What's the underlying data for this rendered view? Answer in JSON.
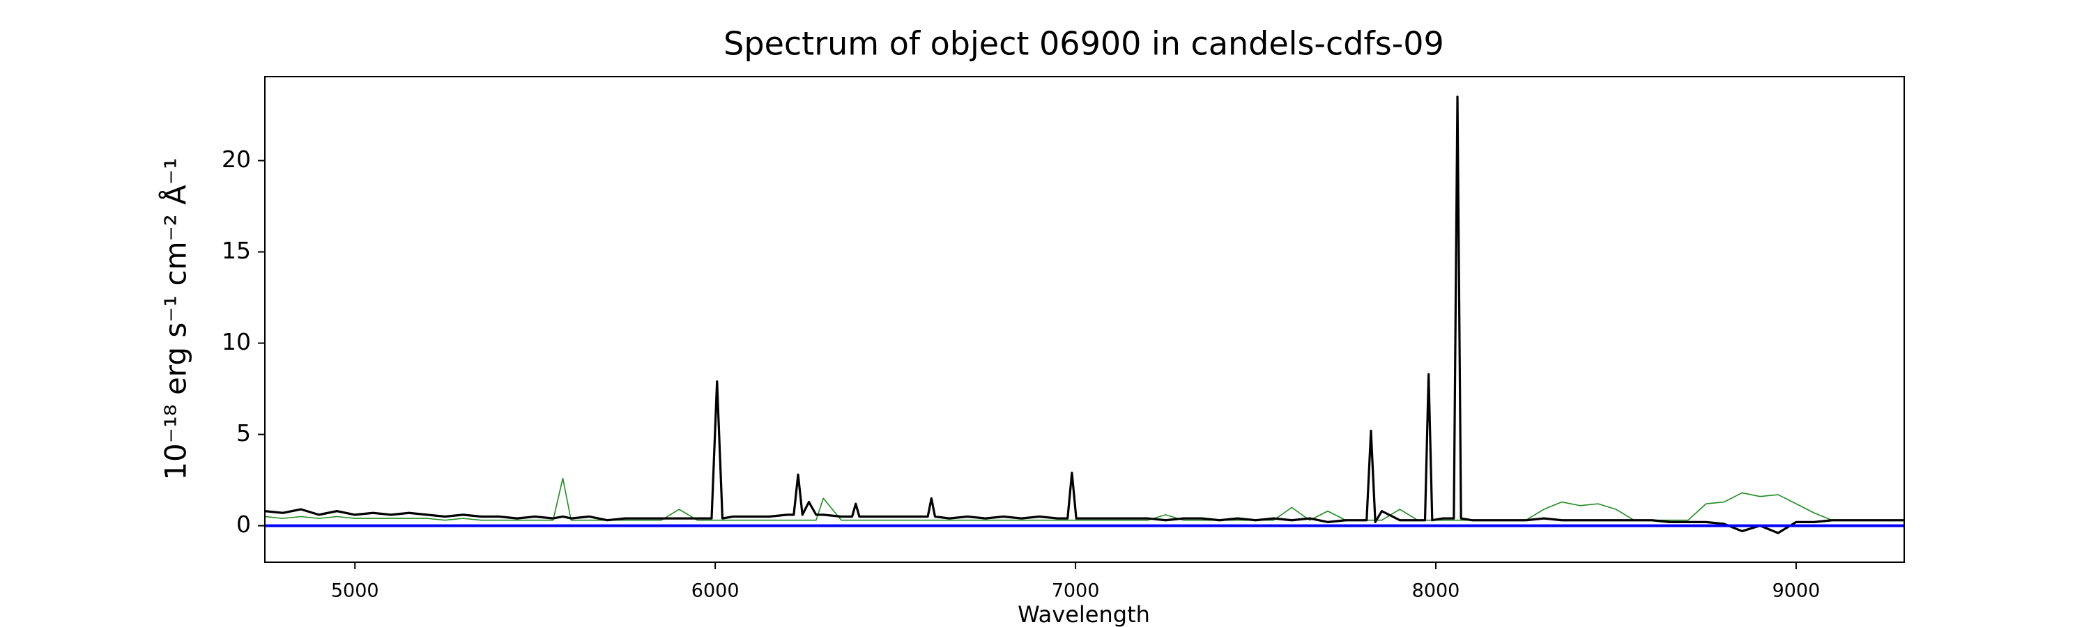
{
  "chart_data": {
    "type": "line",
    "title": "Spectrum of object 06900 in candels-cdfs-09",
    "x_label": "Wavelength",
    "y_label": "10⁻¹⁸ erg s⁻¹ cm⁻² Å⁻¹",
    "x": [
      4750,
      4800,
      4850,
      4900,
      4950,
      5000,
      5050,
      5100,
      5150,
      5200,
      5250,
      5300,
      5350,
      5400,
      5450,
      5500,
      5550,
      5577,
      5600,
      5650,
      5700,
      5750,
      5800,
      5850,
      5900,
      5950,
      5990,
      6005,
      6020,
      6050,
      6100,
      6150,
      6200,
      6218,
      6230,
      6242,
      6260,
      6280,
      6300,
      6350,
      6380,
      6390,
      6400,
      6450,
      6500,
      6550,
      6590,
      6600,
      6610,
      6650,
      6700,
      6750,
      6800,
      6850,
      6900,
      6950,
      6978,
      6990,
      7002,
      7050,
      7100,
      7150,
      7200,
      7250,
      7300,
      7350,
      7400,
      7450,
      7500,
      7550,
      7600,
      7650,
      7700,
      7750,
      7800,
      7808,
      7820,
      7832,
      7850,
      7900,
      7950,
      7970,
      7980,
      7990,
      8020,
      8050,
      8060,
      8070,
      8100,
      8150,
      8200,
      8250,
      8300,
      8350,
      8400,
      8450,
      8500,
      8550,
      8600,
      8650,
      8700,
      8750,
      8800,
      8850,
      8900,
      8950,
      9000,
      9050,
      9100,
      9150,
      9200,
      9250,
      9300
    ],
    "series": [
      {
        "color": "#228b22",
        "values": [
          0.5,
          0.4,
          0.5,
          0.4,
          0.5,
          0.4,
          0.4,
          0.4,
          0.4,
          0.4,
          0.3,
          0.4,
          0.3,
          0.3,
          0.3,
          0.3,
          0.3,
          2.6,
          0.3,
          0.3,
          0.3,
          0.3,
          0.3,
          0.3,
          0.9,
          0.3,
          0.3,
          0.3,
          0.3,
          0.3,
          0.3,
          0.3,
          0.3,
          0.3,
          0.3,
          0.3,
          0.3,
          0.3,
          1.5,
          0.3,
          0.3,
          0.3,
          0.3,
          0.3,
          0.3,
          0.3,
          0.3,
          0.3,
          0.3,
          0.3,
          0.3,
          0.3,
          0.3,
          0.3,
          0.3,
          0.3,
          0.3,
          0.3,
          0.3,
          0.3,
          0.3,
          0.3,
          0.3,
          0.6,
          0.3,
          0.3,
          0.3,
          0.3,
          0.3,
          0.3,
          1.0,
          0.3,
          0.8,
          0.3,
          0.3,
          0.3,
          0.3,
          0.3,
          0.3,
          0.9,
          0.3,
          0.3,
          0.3,
          0.3,
          0.3,
          0.3,
          0.3,
          0.3,
          0.3,
          0.3,
          0.3,
          0.3,
          0.9,
          1.3,
          1.1,
          1.2,
          0.9,
          0.3,
          0.3,
          0.3,
          0.3,
          1.2,
          1.3,
          1.8,
          1.6,
          1.7,
          1.2,
          0.7,
          0.3,
          0.3,
          0.3,
          0.3,
          0.3
        ]
      },
      {
        "color": "#000000",
        "values": [
          0.8,
          0.7,
          0.9,
          0.6,
          0.8,
          0.6,
          0.7,
          0.6,
          0.7,
          0.6,
          0.5,
          0.6,
          0.5,
          0.5,
          0.4,
          0.5,
          0.4,
          0.5,
          0.4,
          0.5,
          0.3,
          0.4,
          0.4,
          0.4,
          0.4,
          0.4,
          0.4,
          7.9,
          0.4,
          0.5,
          0.5,
          0.5,
          0.6,
          0.6,
          2.8,
          0.6,
          1.3,
          0.6,
          0.6,
          0.5,
          0.5,
          1.2,
          0.5,
          0.5,
          0.5,
          0.5,
          0.5,
          1.5,
          0.5,
          0.4,
          0.5,
          0.4,
          0.5,
          0.4,
          0.5,
          0.4,
          0.4,
          2.9,
          0.4,
          0.4,
          0.4,
          0.4,
          0.4,
          0.3,
          0.4,
          0.4,
          0.3,
          0.4,
          0.3,
          0.4,
          0.3,
          0.4,
          0.2,
          0.3,
          0.3,
          0.3,
          5.2,
          0.2,
          0.8,
          0.3,
          0.3,
          0.3,
          8.3,
          0.3,
          0.4,
          0.4,
          23.5,
          0.4,
          0.3,
          0.3,
          0.3,
          0.3,
          0.4,
          0.3,
          0.3,
          0.3,
          0.3,
          0.3,
          0.3,
          0.2,
          0.2,
          0.2,
          0.1,
          -0.3,
          0.0,
          -0.4,
          0.2,
          0.2,
          0.3,
          0.3,
          0.3,
          0.3,
          0.3
        ]
      }
    ],
    "hlines": [
      {
        "y": 0,
        "color": "#0000ff"
      }
    ],
    "xlim": [
      4750,
      9300
    ],
    "ylim": [
      -2,
      24.6
    ],
    "xticks": [
      5000,
      6000,
      7000,
      8000,
      9000
    ],
    "yticks": [
      0,
      5,
      10,
      15,
      20
    ]
  }
}
